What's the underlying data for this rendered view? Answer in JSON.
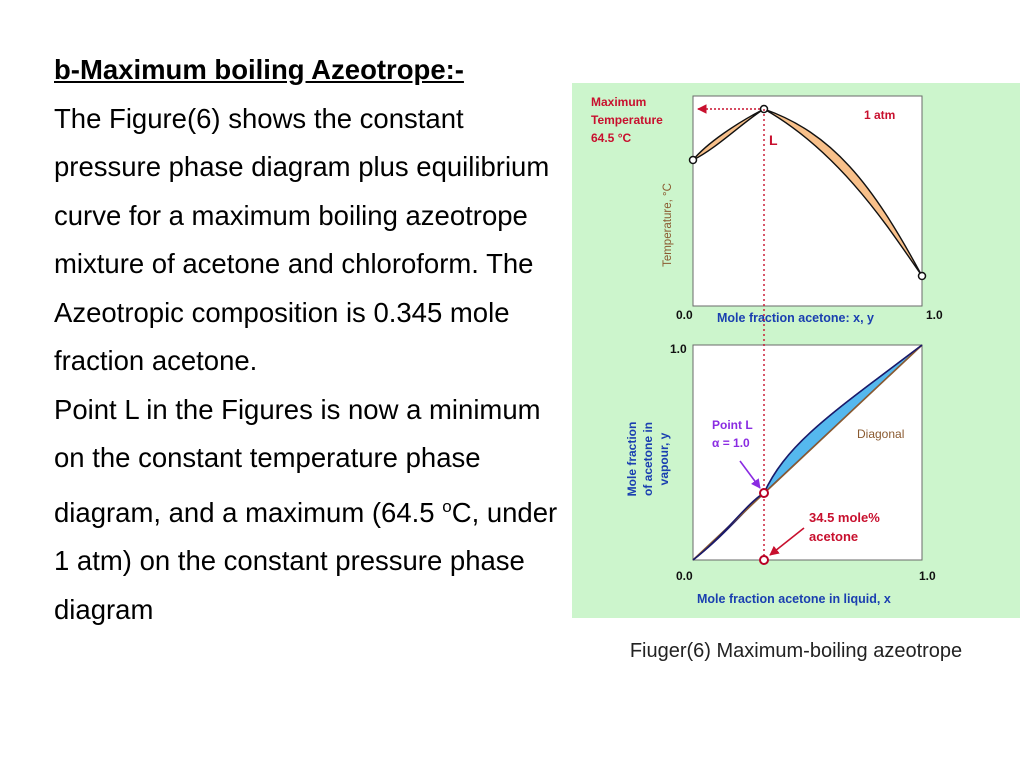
{
  "text": {
    "heading": "b-Maximum boiling Azeotrope:-",
    "paragraph1": "The Figure(6) shows the constant pressure phase diagram plus equilibrium curve  for a maximum boiling azeotrope mixture of acetone and chloroform. The Azeotropic composition is 0.345 mole fraction acetone.",
    "paragraph2_part1": "Point L in the Figures is now a minimum on the constant temperature phase diagram, and a maximum (64.5 ",
    "paragraph2_superscript": "o",
    "paragraph2_part2": "C, under 1 atm) on the constant pressure phase diagram"
  },
  "figure": {
    "caption": "Fiuger(6) Maximum-boiling azeotrope",
    "colors": {
      "background": "#ccf5cc",
      "panel": "#ffffff",
      "top_fill": "#f8c08a",
      "bottom_fill": "#55b8ee",
      "marker": "#b80024",
      "label_red": "#c8102e",
      "label_blue": "#1a3fb0",
      "axis_brown": "#8a5a30",
      "arrow_purple": "#8a2be2"
    },
    "top_plot": {
      "max_temp_line1": "Maximum",
      "max_temp_line2": "Temperature",
      "max_temp_line3": "64.5 °C",
      "point_label": "L",
      "pressure": "1 atm",
      "ylabel": "Temperature, °C",
      "x_tick_min": "0.0",
      "x_tick_max": "1.0",
      "xlabel": "Mole fraction acetone: x, y"
    },
    "bottom_plot": {
      "y_tick_max": "1.0",
      "x_tick_min": "0.0",
      "x_tick_max": "1.0",
      "ylabel_line1": "Mole fraction",
      "ylabel_line2": "of acetone in",
      "ylabel_line3": "vapour, y",
      "xlabel": "Mole fraction acetone in liquid, x",
      "point_label_line1": "Point L",
      "point_label_line2": "α = 1.0",
      "diagonal_label": "Diagonal",
      "azeotrope_label_line1": "34.5 mole%",
      "azeotrope_label_line2": "acetone"
    }
  }
}
